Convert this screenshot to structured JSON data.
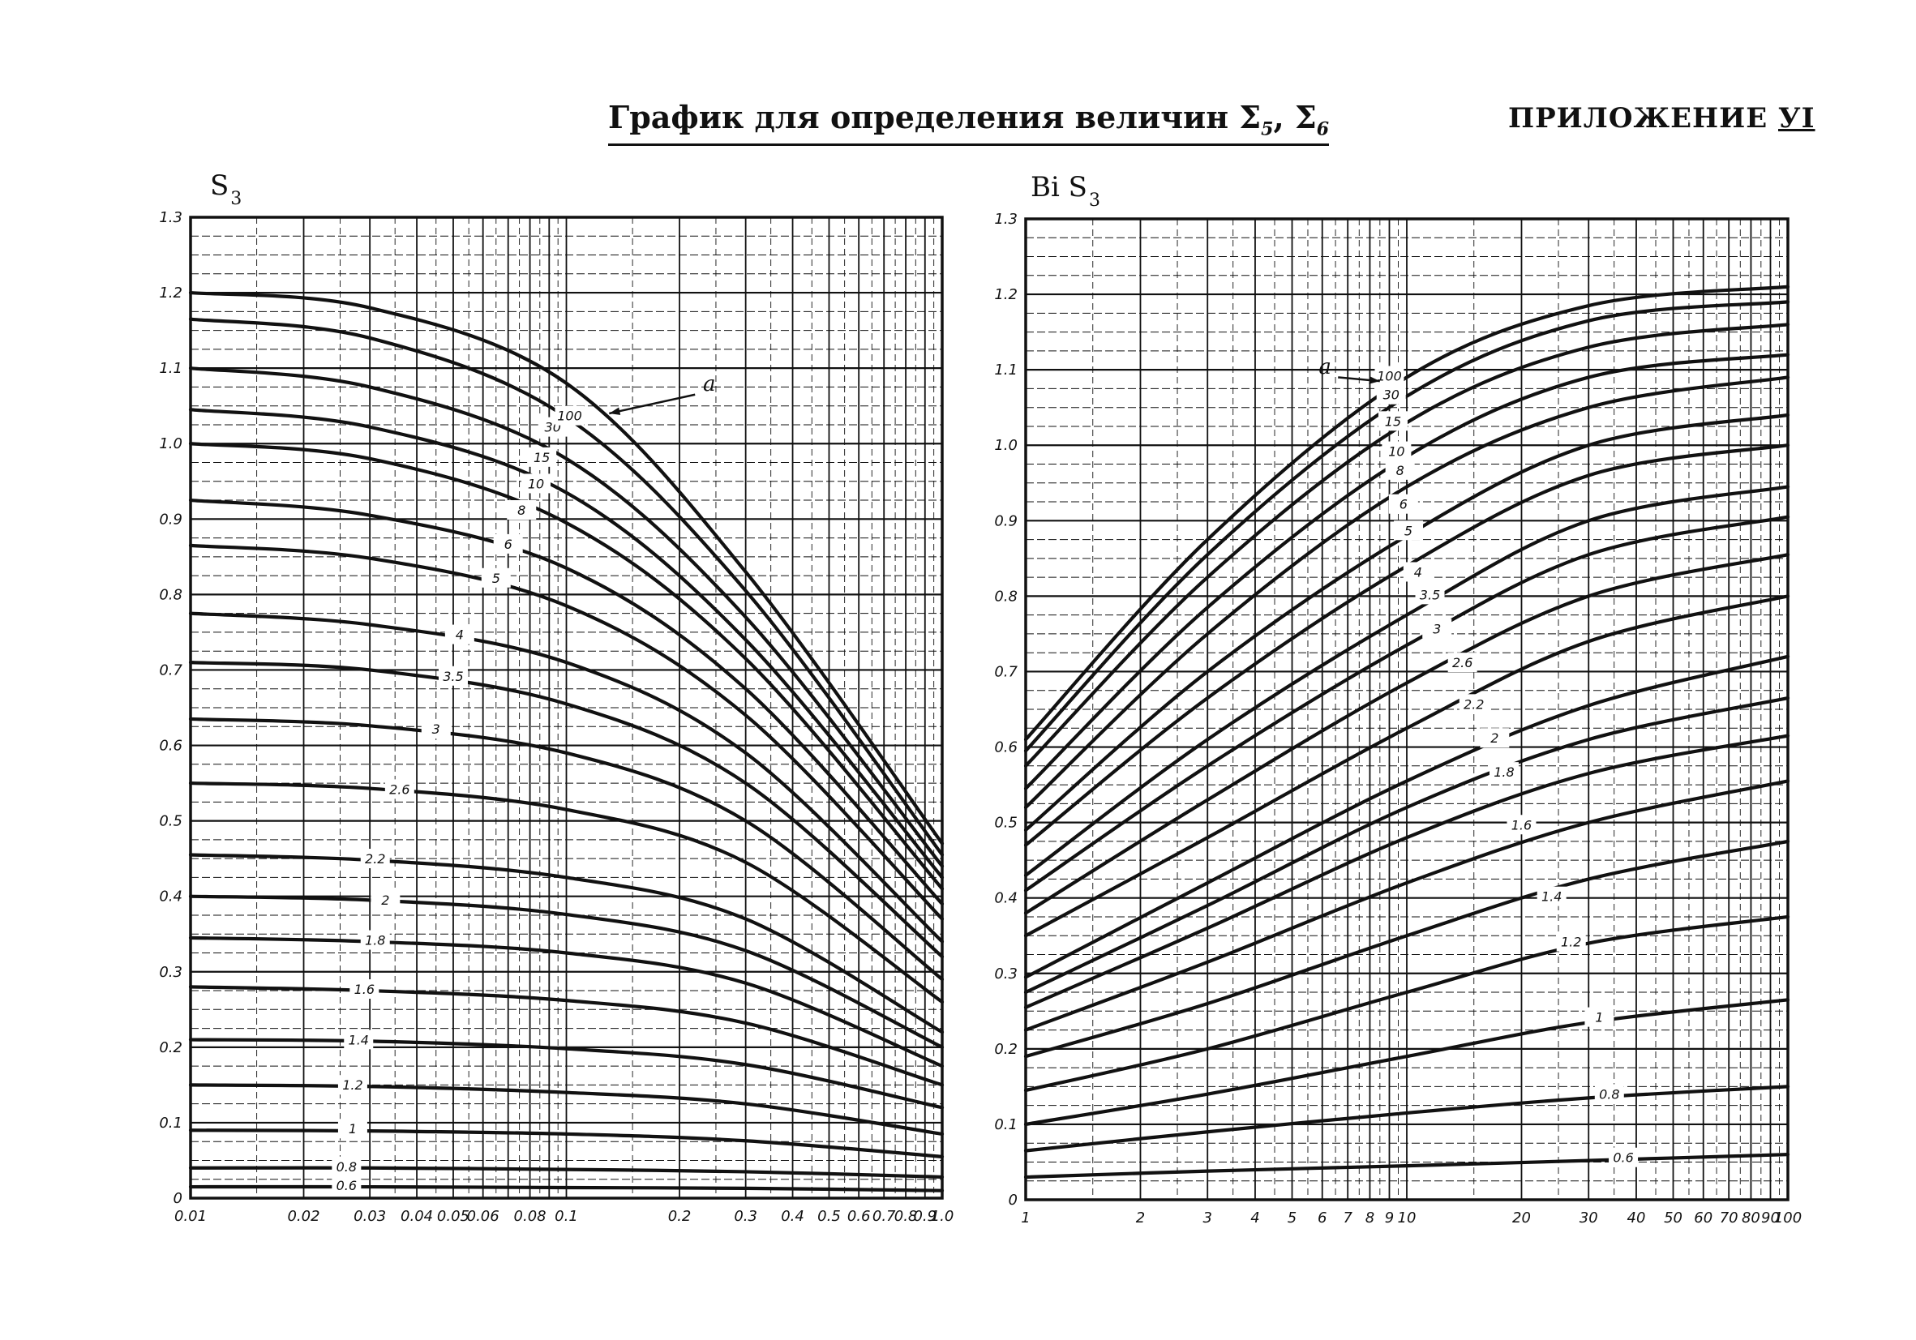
{
  "header": {
    "title": "График для определения величин Σ",
    "title_sub1": "5",
    "title_sep": ", Σ",
    "title_sub2": "6",
    "appendix_label": "ПРИЛОЖЕНИЕ",
    "appendix_num": "УI"
  },
  "chart_data": [
    {
      "type": "line",
      "ylabel": "S",
      "ylabel_sub": "3",
      "xscale": "log",
      "xlim": [
        0.01,
        1.0
      ],
      "ylim": [
        0,
        1.3
      ],
      "grid": true,
      "x_ticks": [
        0.01,
        0.02,
        0.03,
        0.04,
        0.05,
        0.06,
        0.08,
        0.1,
        0.2,
        0.3,
        0.4,
        0.5,
        0.6,
        0.7,
        0.8,
        0.9,
        1.0
      ],
      "x_tick_labels": [
        "0.01",
        "0.02",
        "0.03",
        "0.04",
        "0.05",
        "0.06",
        "0.08",
        "0.1",
        "0.2",
        "0.3",
        "0.4",
        "0.5",
        "0.6",
        "0.7",
        "0.8",
        "0.9",
        "1.0"
      ],
      "y_ticks": [
        0,
        0.1,
        0.2,
        0.3,
        0.4,
        0.5,
        0.6,
        0.7,
        0.8,
        0.9,
        1.0,
        1.1,
        1.2,
        1.3
      ],
      "y_tick_labels": [
        "0",
        "0.1",
        "0.2",
        "0.3",
        "0.4",
        "0.5",
        "0.6",
        "0.7",
        "0.8",
        "0.9",
        "1.0",
        "1.1",
        "1.2",
        "1.3"
      ],
      "parameter_label": "a",
      "series": [
        {
          "name": "0.6",
          "x": [
            0.01,
            0.03,
            0.1,
            0.3,
            1.0
          ],
          "y": [
            0.015,
            0.015,
            0.014,
            0.013,
            0.01
          ]
        },
        {
          "name": "0.8",
          "x": [
            0.01,
            0.03,
            0.1,
            0.3,
            1.0
          ],
          "y": [
            0.04,
            0.04,
            0.038,
            0.035,
            0.028
          ]
        },
        {
          "name": "1",
          "x": [
            0.01,
            0.03,
            0.1,
            0.3,
            1.0
          ],
          "y": [
            0.09,
            0.089,
            0.085,
            0.076,
            0.055
          ]
        },
        {
          "name": "1.2",
          "x": [
            0.01,
            0.03,
            0.1,
            0.3,
            1.0
          ],
          "y": [
            0.15,
            0.148,
            0.14,
            0.125,
            0.085
          ]
        },
        {
          "name": "1.4",
          "x": [
            0.01,
            0.03,
            0.1,
            0.3,
            1.0
          ],
          "y": [
            0.21,
            0.208,
            0.198,
            0.177,
            0.12
          ]
        },
        {
          "name": "1.6",
          "x": [
            0.01,
            0.03,
            0.1,
            0.3,
            1.0
          ],
          "y": [
            0.28,
            0.275,
            0.262,
            0.232,
            0.15
          ]
        },
        {
          "name": "1.8",
          "x": [
            0.01,
            0.03,
            0.1,
            0.3,
            1.0
          ],
          "y": [
            0.345,
            0.34,
            0.325,
            0.285,
            0.175
          ]
        },
        {
          "name": "2",
          "x": [
            0.01,
            0.03,
            0.1,
            0.3,
            1.0
          ],
          "y": [
            0.4,
            0.395,
            0.376,
            0.328,
            0.2
          ]
        },
        {
          "name": "2.2",
          "x": [
            0.01,
            0.03,
            0.1,
            0.3,
            1.0
          ],
          "y": [
            0.455,
            0.448,
            0.425,
            0.37,
            0.22
          ]
        },
        {
          "name": "2.6",
          "x": [
            0.01,
            0.03,
            0.1,
            0.3,
            1.0
          ],
          "y": [
            0.55,
            0.543,
            0.515,
            0.445,
            0.26
          ]
        },
        {
          "name": "3",
          "x": [
            0.01,
            0.03,
            0.1,
            0.3,
            1.0
          ],
          "y": [
            0.635,
            0.626,
            0.59,
            0.5,
            0.29
          ]
        },
        {
          "name": "3.5",
          "x": [
            0.01,
            0.03,
            0.1,
            0.3,
            1.0
          ],
          "y": [
            0.71,
            0.7,
            0.655,
            0.55,
            0.32
          ]
        },
        {
          "name": "4",
          "x": [
            0.01,
            0.03,
            0.1,
            0.3,
            1.0
          ],
          "y": [
            0.775,
            0.76,
            0.71,
            0.59,
            0.34
          ]
        },
        {
          "name": "5",
          "x": [
            0.01,
            0.03,
            0.1,
            0.3,
            1.0
          ],
          "y": [
            0.865,
            0.848,
            0.785,
            0.64,
            0.37
          ]
        },
        {
          "name": "6",
          "x": [
            0.01,
            0.03,
            0.1,
            0.3,
            1.0
          ],
          "y": [
            0.925,
            0.905,
            0.835,
            0.675,
            0.39
          ]
        },
        {
          "name": "8",
          "x": [
            0.01,
            0.03,
            0.1,
            0.3,
            1.0
          ],
          "y": [
            1.0,
            0.98,
            0.895,
            0.715,
            0.41
          ]
        },
        {
          "name": "10",
          "x": [
            0.01,
            0.03,
            0.1,
            0.3,
            1.0
          ],
          "y": [
            1.045,
            1.022,
            0.935,
            0.74,
            0.425
          ]
        },
        {
          "name": "15",
          "x": [
            0.01,
            0.03,
            0.1,
            0.3,
            1.0
          ],
          "y": [
            1.1,
            1.075,
            0.98,
            0.77,
            0.44
          ]
        },
        {
          "name": "30",
          "x": [
            0.01,
            0.03,
            0.1,
            0.3,
            1.0
          ],
          "y": [
            1.165,
            1.14,
            1.035,
            0.805,
            0.455
          ]
        },
        {
          "name": "100",
          "x": [
            0.01,
            0.03,
            0.1,
            0.3,
            1.0
          ],
          "y": [
            1.2,
            1.18,
            1.08,
            0.83,
            0.47
          ]
        }
      ],
      "curve_labels": [
        {
          "text": "0.6",
          "x": 0.026,
          "y": 0.015
        },
        {
          "text": "0.8",
          "x": 0.026,
          "y": 0.04
        },
        {
          "text": "1",
          "x": 0.027,
          "y": 0.09
        },
        {
          "text": "1.2",
          "x": 0.027,
          "y": 0.148
        },
        {
          "text": "1.4",
          "x": 0.028,
          "y": 0.208
        },
        {
          "text": "1.6",
          "x": 0.029,
          "y": 0.275
        },
        {
          "text": "1.8",
          "x": 0.031,
          "y": 0.34
        },
        {
          "text": "2",
          "x": 0.033,
          "y": 0.393
        },
        {
          "text": "2.2",
          "x": 0.031,
          "y": 0.448
        },
        {
          "text": "2.6",
          "x": 0.036,
          "y": 0.54
        },
        {
          "text": "3",
          "x": 0.045,
          "y": 0.62
        },
        {
          "text": "3.5",
          "x": 0.05,
          "y": 0.69
        },
        {
          "text": "4",
          "x": 0.052,
          "y": 0.745
        },
        {
          "text": "5",
          "x": 0.065,
          "y": 0.82
        },
        {
          "text": "6",
          "x": 0.07,
          "y": 0.865
        },
        {
          "text": "8",
          "x": 0.076,
          "y": 0.91
        },
        {
          "text": "10",
          "x": 0.083,
          "y": 0.945
        },
        {
          "text": "15",
          "x": 0.086,
          "y": 0.98
        },
        {
          "text": "30",
          "x": 0.092,
          "y": 1.02
        },
        {
          "text": "100",
          "x": 0.102,
          "y": 1.035
        }
      ],
      "parameter_label_pos": {
        "x": 0.24,
        "y": 1.07
      },
      "parameter_arrow": {
        "from": {
          "x": 0.22,
          "y": 1.065
        },
        "to": {
          "x": 0.13,
          "y": 1.04
        }
      }
    },
    {
      "type": "line",
      "ylabel": "Bi S",
      "ylabel_sub": "3",
      "xscale": "log",
      "xlim": [
        1,
        100
      ],
      "ylim": [
        0,
        1.3
      ],
      "grid": true,
      "x_ticks": [
        1,
        2,
        3,
        4,
        5,
        6,
        7,
        8,
        9,
        10,
        20,
        30,
        40,
        50,
        60,
        70,
        80,
        90,
        100
      ],
      "x_tick_labels": [
        "1",
        "2",
        "3",
        "4",
        "5",
        "6",
        "7",
        "8",
        "9",
        "10",
        "20",
        "30",
        "40",
        "50",
        "60",
        "70",
        "80",
        "90",
        "100"
      ],
      "y_ticks": [
        0,
        0.1,
        0.2,
        0.3,
        0.4,
        0.5,
        0.6,
        0.7,
        0.8,
        0.9,
        1.0,
        1.1,
        1.2,
        1.3
      ],
      "y_tick_labels": [
        "0",
        "0.1",
        "0.2",
        "0.3",
        "0.4",
        "0.5",
        "0.6",
        "0.7",
        "0.8",
        "0.9",
        "1.0",
        "1.1",
        "1.2",
        "1.3"
      ],
      "parameter_label": "a",
      "series": [
        {
          "name": "0.6",
          "x": [
            1,
            3,
            10,
            30,
            100
          ],
          "y": [
            0.03,
            0.038,
            0.045,
            0.052,
            0.06
          ]
        },
        {
          "name": "0.8",
          "x": [
            1,
            3,
            10,
            30,
            100
          ],
          "y": [
            0.065,
            0.09,
            0.115,
            0.135,
            0.15
          ]
        },
        {
          "name": "1",
          "x": [
            1,
            3,
            10,
            30,
            100
          ],
          "y": [
            0.1,
            0.14,
            0.19,
            0.235,
            0.265
          ]
        },
        {
          "name": "1.2",
          "x": [
            1,
            3,
            10,
            30,
            100
          ],
          "y": [
            0.145,
            0.2,
            0.275,
            0.34,
            0.375
          ]
        },
        {
          "name": "1.4",
          "x": [
            1,
            3,
            10,
            30,
            100
          ],
          "y": [
            0.19,
            0.26,
            0.35,
            0.425,
            0.475
          ]
        },
        {
          "name": "1.6",
          "x": [
            1,
            3,
            10,
            30,
            100
          ],
          "y": [
            0.225,
            0.315,
            0.42,
            0.5,
            0.555
          ]
        },
        {
          "name": "1.8",
          "x": [
            1,
            3,
            10,
            30,
            100
          ],
          "y": [
            0.255,
            0.36,
            0.48,
            0.565,
            0.615
          ]
        },
        {
          "name": "2",
          "x": [
            1,
            3,
            10,
            30,
            100
          ],
          "y": [
            0.275,
            0.39,
            0.52,
            0.61,
            0.665
          ]
        },
        {
          "name": "2.2",
          "x": [
            1,
            3,
            10,
            30,
            100
          ],
          "y": [
            0.295,
            0.42,
            0.555,
            0.655,
            0.72
          ]
        },
        {
          "name": "2.6",
          "x": [
            1,
            3,
            10,
            30,
            100
          ],
          "y": [
            0.35,
            0.48,
            0.625,
            0.74,
            0.8
          ]
        },
        {
          "name": "3",
          "x": [
            1,
            3,
            10,
            30,
            100
          ],
          "y": [
            0.38,
            0.53,
            0.685,
            0.8,
            0.855
          ]
        },
        {
          "name": "3.5",
          "x": [
            1,
            3,
            10,
            30,
            100
          ],
          "y": [
            0.41,
            0.575,
            0.735,
            0.855,
            0.905
          ]
        },
        {
          "name": "4",
          "x": [
            1,
            3,
            10,
            30,
            100
          ],
          "y": [
            0.43,
            0.61,
            0.775,
            0.9,
            0.945
          ]
        },
        {
          "name": "5",
          "x": [
            1,
            3,
            10,
            30,
            100
          ],
          "y": [
            0.47,
            0.665,
            0.84,
            0.96,
            1.0
          ]
        },
        {
          "name": "6",
          "x": [
            1,
            3,
            10,
            30,
            100
          ],
          "y": [
            0.49,
            0.7,
            0.88,
            1.0,
            1.04
          ]
        },
        {
          "name": "8",
          "x": [
            1,
            3,
            10,
            30,
            100
          ],
          "y": [
            0.52,
            0.75,
            0.945,
            1.05,
            1.09
          ]
        },
        {
          "name": "10",
          "x": [
            1,
            3,
            10,
            30,
            100
          ],
          "y": [
            0.545,
            0.785,
            0.985,
            1.09,
            1.12
          ]
        },
        {
          "name": "15",
          "x": [
            1,
            3,
            10,
            30,
            100
          ],
          "y": [
            0.575,
            0.825,
            1.03,
            1.13,
            1.16
          ]
        },
        {
          "name": "30",
          "x": [
            1,
            3,
            10,
            30,
            100
          ],
          "y": [
            0.595,
            0.855,
            1.065,
            1.165,
            1.19
          ]
        },
        {
          "name": "100",
          "x": [
            1,
            3,
            10,
            30,
            100
          ],
          "y": [
            0.61,
            0.875,
            1.09,
            1.185,
            1.21
          ]
        }
      ],
      "curve_labels": [
        {
          "text": "0.6",
          "x": 37,
          "y": 0.054
        },
        {
          "text": "0.8",
          "x": 34,
          "y": 0.138
        },
        {
          "text": "1",
          "x": 32,
          "y": 0.24
        },
        {
          "text": "1.2",
          "x": 27,
          "y": 0.34
        },
        {
          "text": "1.4",
          "x": 24,
          "y": 0.4
        },
        {
          "text": "1.6",
          "x": 20,
          "y": 0.495
        },
        {
          "text": "1.8",
          "x": 18,
          "y": 0.565
        },
        {
          "text": "2",
          "x": 17,
          "y": 0.61
        },
        {
          "text": "2.2",
          "x": 15,
          "y": 0.655
        },
        {
          "text": "2.6",
          "x": 14,
          "y": 0.71
        },
        {
          "text": "3",
          "x": 12,
          "y": 0.755
        },
        {
          "text": "3.5",
          "x": 11.5,
          "y": 0.8
        },
        {
          "text": "4",
          "x": 10.7,
          "y": 0.83
        },
        {
          "text": "5",
          "x": 10.1,
          "y": 0.885
        },
        {
          "text": "6",
          "x": 9.8,
          "y": 0.92
        },
        {
          "text": "8",
          "x": 9.6,
          "y": 0.965
        },
        {
          "text": "10",
          "x": 9.4,
          "y": 0.99
        },
        {
          "text": "15",
          "x": 9.2,
          "y": 1.03
        },
        {
          "text": "30",
          "x": 9.1,
          "y": 1.065
        },
        {
          "text": "100",
          "x": 9.0,
          "y": 1.09
        }
      ],
      "parameter_label_pos": {
        "x": 6.1,
        "y": 1.095
      },
      "parameter_arrow": {
        "from": {
          "x": 6.6,
          "y": 1.09
        },
        "to": {
          "x": 8.5,
          "y": 1.085
        }
      }
    }
  ]
}
